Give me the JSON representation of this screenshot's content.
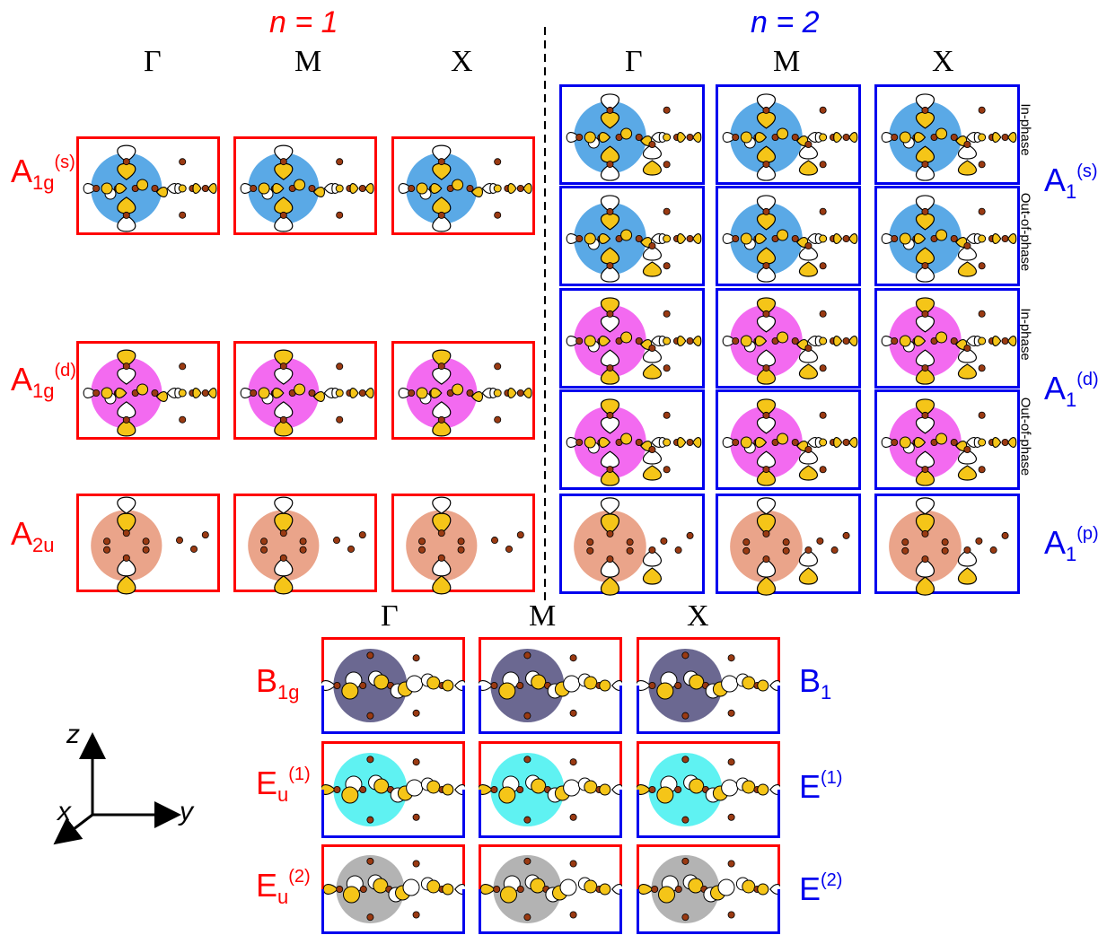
{
  "headers": {
    "n1": "n = 1",
    "n2": "n = 2"
  },
  "kpoints": {
    "gamma": "Γ",
    "m": "M",
    "x": "X"
  },
  "symmetry_labels": {
    "a1g_s": {
      "base": "A",
      "sub": "1g",
      "sup": "(s)"
    },
    "a1g_d": {
      "base": "A",
      "sub": "1g",
      "sup": "(d)"
    },
    "a2u": {
      "base": "A",
      "sub": "2u",
      "sup": ""
    },
    "a1_s": {
      "base": "A",
      "sub": "1",
      "sup": "(s)"
    },
    "a1_d": {
      "base": "A",
      "sub": "1",
      "sup": "(d)"
    },
    "a1_p": {
      "base": "A",
      "sub": "1",
      "sup": "(p)"
    },
    "b1g": {
      "base": "B",
      "sub": "1g",
      "sup": ""
    },
    "b1": {
      "base": "B",
      "sub": "1",
      "sup": ""
    },
    "eu1": {
      "base": "E",
      "sub": "u",
      "sup": "(1)"
    },
    "e1": {
      "base": "E",
      "sub": "",
      "sup": "(1)"
    },
    "eu2": {
      "base": "E",
      "sub": "u",
      "sup": "(2)"
    },
    "e2": {
      "base": "E",
      "sub": "",
      "sup": "(2)"
    }
  },
  "phase_labels": {
    "in": "In-phase",
    "out": "Out-of-phase"
  },
  "axes": {
    "z": "z",
    "x": "x",
    "y": "y"
  },
  "colors": {
    "red": "#ff0000",
    "blue": "#0000ee",
    "s_blob": "#5aa9e6",
    "d_blob": "#f36af0",
    "p_blob": "#eaa48a",
    "b1_blob": "#6b6891",
    "e1_blob": "#5ff2f2",
    "e2_blob": "#b3b3b3",
    "lobe_yellow": "#f5c518",
    "atom": "#9a3a12"
  }
}
